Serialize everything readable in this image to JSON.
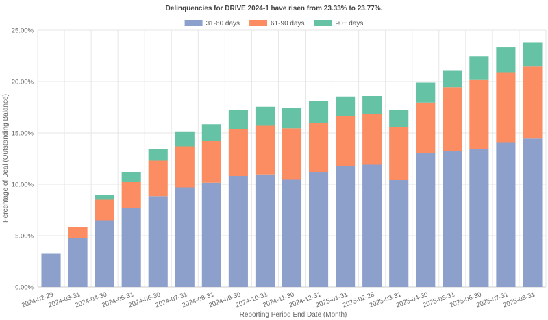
{
  "chart_data": {
    "type": "bar",
    "stacked": true,
    "title": "Delinquencies for DRIVE 2024-1 have risen from 23.33% to 23.77%.",
    "xlabel": "Reporting Period End Date (Month)",
    "ylabel": "Percentage of Deal (Outstanding Balance)",
    "ylim": [
      0,
      25
    ],
    "yticks": [
      "0.00%",
      "5.00%",
      "10.00%",
      "15.00%",
      "20.00%",
      "25.00%"
    ],
    "grid": true,
    "legend_position": "top-center",
    "categories": [
      "2024-02-29",
      "2024-03-31",
      "2024-04-30",
      "2024-05-31",
      "2024-06-30",
      "2024-07-31",
      "2024-08-31",
      "2024-09-30",
      "2024-10-31",
      "2024-11-30",
      "2024-12-31",
      "2025-01-31",
      "2025-02-28",
      "2025-03-31",
      "2025-04-30",
      "2025-05-31",
      "2025-06-30",
      "2025-07-31",
      "2025-08-31"
    ],
    "series": [
      {
        "name": "31-60 days",
        "color": "#8da0cb",
        "values": [
          3.3,
          4.8,
          6.5,
          7.7,
          8.85,
          9.7,
          10.15,
          10.8,
          10.95,
          10.5,
          11.2,
          11.8,
          11.9,
          10.4,
          13.0,
          13.2,
          13.4,
          14.1,
          14.45
        ]
      },
      {
        "name": "61-90 days",
        "color": "#fc8d62",
        "values": [
          0,
          1.0,
          2.0,
          2.5,
          3.45,
          4.0,
          4.05,
          4.6,
          4.75,
          4.95,
          4.8,
          4.85,
          4.95,
          5.15,
          4.95,
          6.25,
          6.75,
          6.8,
          7.0
        ]
      },
      {
        "name": "90+ days",
        "color": "#66c2a5",
        "values": [
          0,
          0,
          0.5,
          1.0,
          1.15,
          1.45,
          1.65,
          1.8,
          1.85,
          1.95,
          2.1,
          1.9,
          1.75,
          1.65,
          1.95,
          1.65,
          2.3,
          2.43,
          2.32
        ]
      }
    ]
  }
}
